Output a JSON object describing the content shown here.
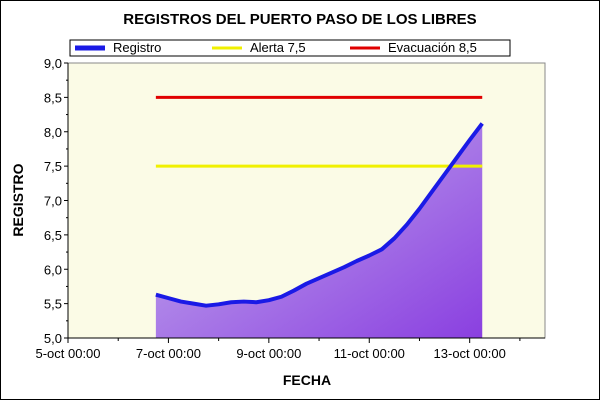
{
  "colors": {
    "registro": "#1a1ae6",
    "alerta": "#f0f000",
    "evacuacion": "#e00000",
    "plot_bg": "#fbfbe6",
    "area_top": "#c8b6ee",
    "area_bottom": "#8a3fe0"
  },
  "chart_data": {
    "type": "area",
    "title": "REGISTROS DEL PUERTO PASO DE LOS LIBRES",
    "xlabel": "FECHA",
    "ylabel": "REGISTRO",
    "ylim": [
      5.0,
      9.0
    ],
    "xlim_days": [
      5.0,
      14.5
    ],
    "y_ticks": [
      "5,0",
      "5,5",
      "6,0",
      "6,5",
      "7,0",
      "7,5",
      "8,0",
      "8,5",
      "9,0"
    ],
    "x_ticks": [
      {
        "day": 5,
        "label": "5-oct 00:00"
      },
      {
        "day": 7,
        "label": "7-oct 00:00"
      },
      {
        "day": 9,
        "label": "9-oct 00:00"
      },
      {
        "day": 11,
        "label": "11-oct 00:00"
      },
      {
        "day": 13,
        "label": "13-oct 00:00"
      }
    ],
    "legend": {
      "position": "top",
      "entries": [
        "Registro",
        "Alerta 7,5",
        "Evacuación 8,5"
      ]
    },
    "series": [
      {
        "name": "Registro",
        "x": [
          6.75,
          7.0,
          7.25,
          7.5,
          7.75,
          8.0,
          8.25,
          8.5,
          8.75,
          9.0,
          9.25,
          9.5,
          9.75,
          10.0,
          10.25,
          10.5,
          10.75,
          11.0,
          11.25,
          11.5,
          11.75,
          12.0,
          12.25,
          12.5,
          12.75,
          13.0,
          13.25
        ],
        "values": [
          5.63,
          5.58,
          5.53,
          5.5,
          5.47,
          5.49,
          5.52,
          5.53,
          5.52,
          5.55,
          5.6,
          5.69,
          5.79,
          5.87,
          5.95,
          6.03,
          6.12,
          6.2,
          6.29,
          6.45,
          6.65,
          6.88,
          7.13,
          7.38,
          7.63,
          7.88,
          8.12
        ]
      },
      {
        "name": "Alerta 7,5",
        "x": [
          6.75,
          13.25
        ],
        "values": [
          7.5,
          7.5
        ]
      },
      {
        "name": "Evacuación 8,5",
        "x": [
          6.75,
          13.25
        ],
        "values": [
          8.5,
          8.5
        ]
      }
    ]
  }
}
